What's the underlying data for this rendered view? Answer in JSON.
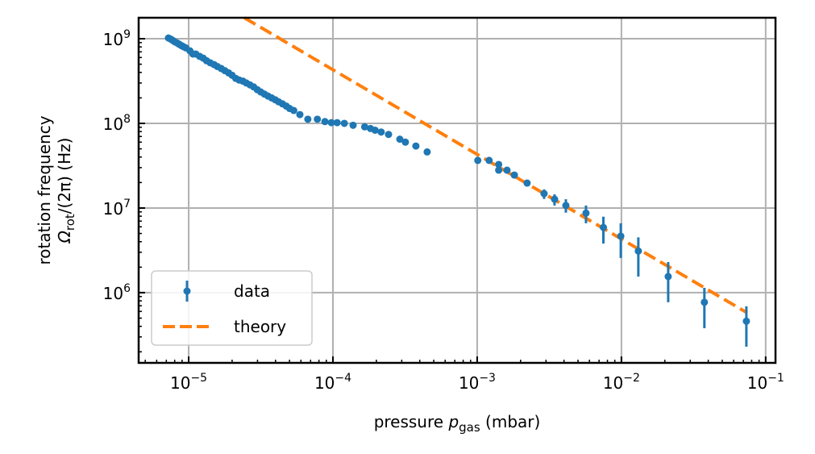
{
  "chart_data": {
    "type": "scatter",
    "xscale": "log",
    "yscale": "log",
    "xlabel": {
      "main": "pressure ",
      "var": "p",
      "sub": "gas",
      "unit": " (mbar)"
    },
    "ylabel": {
      "line1": "rotation frequency",
      "line2_var": "Ω",
      "line2_sub": "rot",
      "line2_rest": "/(2π) (Hz)"
    },
    "xlim": [
      4.5e-06,
      0.117
    ],
    "ylim": [
      148000.0,
      1770000000.0
    ],
    "grid": true,
    "legend_position": "lower-left",
    "x_ticks": [
      {
        "exp": "−5",
        "value": 1e-05
      },
      {
        "exp": "−4",
        "value": 0.0001
      },
      {
        "exp": "−3",
        "value": 0.001
      },
      {
        "exp": "−2",
        "value": 0.01
      },
      {
        "exp": "−1",
        "value": 0.1
      }
    ],
    "y_ticks": [
      {
        "exp": "6",
        "value": 1000000.0
      },
      {
        "exp": "7",
        "value": 10000000.0
      },
      {
        "exp": "8",
        "value": 100000000.0
      },
      {
        "exp": "9",
        "value": 1000000000.0
      }
    ],
    "tick_base": "10",
    "series": [
      {
        "name": "data",
        "color": "#1f77b4",
        "points": [
          {
            "x": 7.24e-06,
            "y": 1020000000.0
          },
          {
            "x": 7.5e-06,
            "y": 990000000.0
          },
          {
            "x": 7.76e-06,
            "y": 955000000.0
          },
          {
            "x": 8e-06,
            "y": 920000000.0
          },
          {
            "x": 8.32e-06,
            "y": 890000000.0
          },
          {
            "x": 8.6e-06,
            "y": 860000000.0
          },
          {
            "x": 8.91e-06,
            "y": 830000000.0
          },
          {
            "x": 9.2e-06,
            "y": 805000000.0
          },
          {
            "x": 9.55e-06,
            "y": 780000000.0
          },
          {
            "x": 1.02e-05,
            "y": 720000000.0
          },
          {
            "x": 1.07e-05,
            "y": 660000000.0
          },
          {
            "x": 1.12e-05,
            "y": 660000000.0
          },
          {
            "x": 1.19e-05,
            "y": 620000000.0
          },
          {
            "x": 1.26e-05,
            "y": 590000000.0
          },
          {
            "x": 1.33e-05,
            "y": 550000000.0
          },
          {
            "x": 1.41e-05,
            "y": 520000000.0
          },
          {
            "x": 1.5e-05,
            "y": 495000000.0
          },
          {
            "x": 1.58e-05,
            "y": 470000000.0
          },
          {
            "x": 1.68e-05,
            "y": 445000000.0
          },
          {
            "x": 1.78e-05,
            "y": 420000000.0
          },
          {
            "x": 1.89e-05,
            "y": 395000000.0
          },
          {
            "x": 2e-05,
            "y": 370000000.0
          },
          {
            "x": 2.12e-05,
            "y": 340000000.0
          },
          {
            "x": 2.24e-05,
            "y": 325000000.0
          },
          {
            "x": 2.38e-05,
            "y": 315000000.0
          },
          {
            "x": 2.51e-05,
            "y": 300000000.0
          },
          {
            "x": 2.66e-05,
            "y": 285000000.0
          },
          {
            "x": 2.82e-05,
            "y": 270000000.0
          },
          {
            "x": 2.99e-05,
            "y": 250000000.0
          },
          {
            "x": 3.16e-05,
            "y": 235000000.0
          },
          {
            "x": 3.35e-05,
            "y": 222000000.0
          },
          {
            "x": 3.55e-05,
            "y": 210000000.0
          },
          {
            "x": 3.76e-05,
            "y": 200000000.0
          },
          {
            "x": 3.98e-05,
            "y": 190000000.0
          },
          {
            "x": 4.2e-05,
            "y": 180000000.0
          },
          {
            "x": 4.47e-05,
            "y": 170000000.0
          },
          {
            "x": 4.75e-05,
            "y": 160000000.0
          },
          {
            "x": 5.01e-05,
            "y": 150000000.0
          },
          {
            "x": 5.35e-05,
            "y": 142000000.0
          },
          {
            "x": 5.9e-05,
            "y": 127000000.0
          },
          {
            "x": 6.7e-05,
            "y": 112000000.0
          },
          {
            "x": 7.8e-05,
            "y": 112000000.0
          },
          {
            "x": 8.8e-05,
            "y": 105000000.0
          },
          {
            "x": 9.75e-05,
            "y": 102000000.0
          },
          {
            "x": 0.000107,
            "y": 102000000.0
          },
          {
            "x": 0.00012,
            "y": 100000000.0
          },
          {
            "x": 0.000138,
            "y": 95000000.0
          },
          {
            "x": 0.000166,
            "y": 91000000.0
          },
          {
            "x": 0.000182,
            "y": 87000000.0
          },
          {
            "x": 0.000196,
            "y": 83000000.0
          },
          {
            "x": 0.000216,
            "y": 79000000.0
          },
          {
            "x": 0.000243,
            "y": 74000000.0
          },
          {
            "x": 0.000291,
            "y": 65000000.0
          },
          {
            "x": 0.000318,
            "y": 60000000.0
          },
          {
            "x": 0.000376,
            "y": 54000000.0
          },
          {
            "x": 0.00045,
            "y": 46000000.0
          },
          {
            "x": 0.00101,
            "y": 36500000.0
          },
          {
            "x": 0.00121,
            "y": 36500000.0
          },
          {
            "x": 0.00141,
            "y": 32700000.0
          },
          {
            "x": 0.00141,
            "y": 28000000.0
          },
          {
            "x": 0.00161,
            "y": 28000000.0
          },
          {
            "x": 0.00181,
            "y": 24500000.0
          },
          {
            "x": 0.00222,
            "y": 19700000.0
          },
          {
            "x": 0.00291,
            "y": 14800000.0,
            "ylow": 12800000.0,
            "yhigh": 16600000.0
          },
          {
            "x": 0.00344,
            "y": 12700000.0,
            "ylow": 10700000.0,
            "yhigh": 14500000.0
          },
          {
            "x": 0.00412,
            "y": 10700000.0,
            "ylow": 8800000.0,
            "yhigh": 12700000.0
          },
          {
            "x": 0.00568,
            "y": 8700000.0,
            "ylow": 6600000.0,
            "yhigh": 10700000.0
          },
          {
            "x": 0.0075,
            "y": 5900000.0,
            "ylow": 3800000.0,
            "yhigh": 7900000.0
          },
          {
            "x": 0.0099,
            "y": 4650000.0,
            "ylow": 2570000.0,
            "yhigh": 6600000.0
          },
          {
            "x": 0.0131,
            "y": 3100000.0,
            "ylow": 1550000.0,
            "yhigh": 4500000.0
          },
          {
            "x": 0.0211,
            "y": 1550000.0,
            "ylow": 770000.0,
            "yhigh": 2300000.0
          },
          {
            "x": 0.0376,
            "y": 770000.0,
            "ylow": 380000.0,
            "yhigh": 1140000.0
          },
          {
            "x": 0.0735,
            "y": 460000.0,
            "ylow": 230000.0,
            "yhigh": 690000.0
          }
        ]
      },
      {
        "name": "theory",
        "type": "line",
        "style": "dashed",
        "color": "#ff7f0e",
        "formula": "y = 4.3e4 / x",
        "coefficient": 43000.0,
        "x_range": [
          2.3e-05,
          0.0745
        ]
      }
    ]
  }
}
